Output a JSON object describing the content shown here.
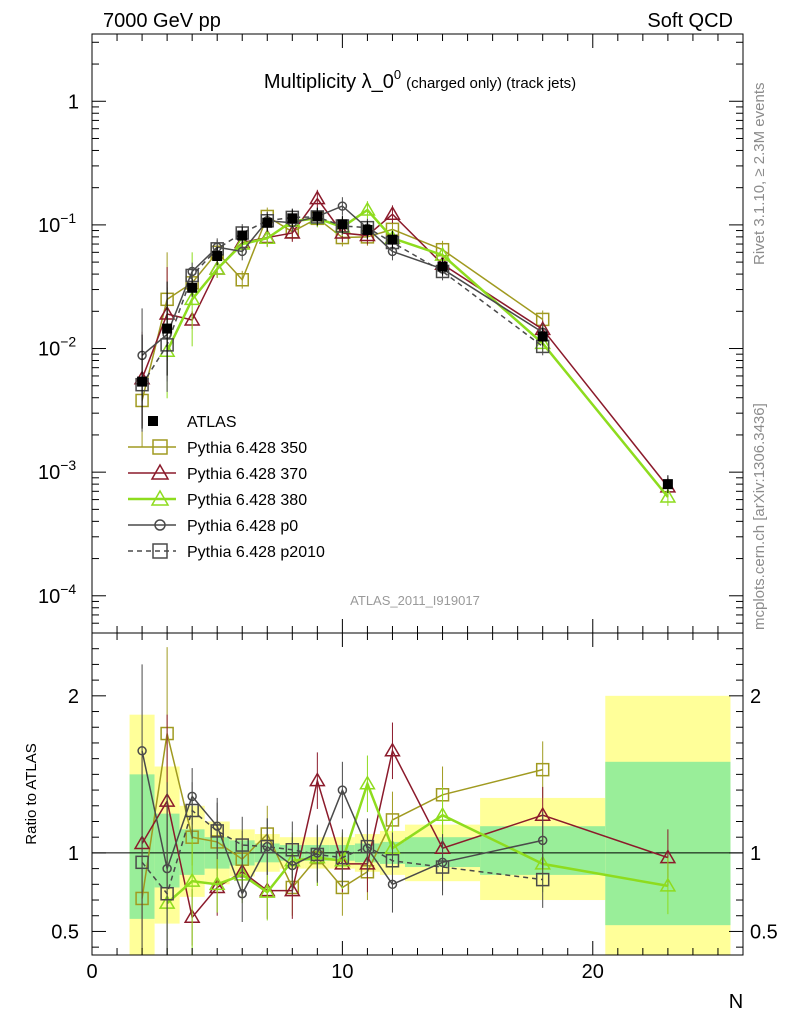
{
  "header": {
    "left": "7000 GeV pp",
    "right": "Soft QCD"
  },
  "side_text": {
    "top": "Rivet 3.1.10, ≥ 2.3M events",
    "bottom": "mcplots.cern.ch [arXiv:1306.3436]"
  },
  "chart_data": [
    {
      "type": "line",
      "title": "Multiplicity λ_0⁰ (charged only) (track jets)",
      "title_main": "Multiplicity λ_0",
      "title_sup": "0",
      "title_rest": "(charged only) (track jets)",
      "watermark": "ATLAS_2011_I919017",
      "xlabel": "N",
      "ylabel": "",
      "xlim": [
        0,
        26
      ],
      "ylim": [
        5e-05,
        3.5
      ],
      "log_y": true,
      "x_ticks": [
        0,
        10,
        20
      ],
      "y_tick_labels": [
        {
          "value": 1,
          "label": "1"
        },
        {
          "value": 0.1,
          "label": "10",
          "exp": "−1"
        },
        {
          "value": 0.01,
          "label": "10",
          "exp": "−2"
        },
        {
          "value": 0.001,
          "label": "10",
          "exp": "−3"
        },
        {
          "value": 0.0001,
          "label": "10",
          "exp": "−4"
        }
      ],
      "legend_position": "left-middle",
      "series": [
        {
          "name": "ATLAS",
          "color": "#000000",
          "marker": "filled-square",
          "style": "points",
          "x": [
            2,
            3,
            4,
            5,
            6,
            7,
            8,
            9,
            10,
            11,
            12,
            14,
            18,
            23
          ],
          "y": [
            0.0054,
            0.0145,
            0.031,
            0.056,
            0.082,
            0.104,
            0.113,
            0.117,
            0.101,
            0.091,
            0.076,
            0.046,
            0.0125,
            0.0008
          ]
        },
        {
          "name": "Pythia 6.428 350",
          "color": "#a09a20",
          "marker": "open-square",
          "style": "solid",
          "x": [
            2,
            3,
            4,
            5,
            6,
            7,
            8,
            9,
            10,
            11,
            12,
            14,
            18
          ],
          "y": [
            0.0038,
            0.025,
            0.034,
            0.06,
            0.036,
            0.117,
            0.088,
            0.113,
            0.079,
            0.08,
            0.092,
            0.063,
            0.0172
          ]
        },
        {
          "name": "Pythia 6.428 370",
          "color": "#8b1a2b",
          "marker": "open-triangle",
          "style": "solid",
          "x": [
            2,
            3,
            4,
            5,
            6,
            7,
            8,
            9,
            10,
            11,
            12,
            14,
            18,
            23
          ],
          "y": [
            0.0057,
            0.019,
            0.017,
            0.044,
            0.072,
            0.079,
            0.086,
            0.163,
            0.086,
            0.082,
            0.122,
            0.048,
            0.0143,
            0.00076
          ]
        },
        {
          "name": "Pythia 6.428 380",
          "color": "#8edc1e",
          "marker": "open-triangle",
          "style": "solid",
          "x": [
            3,
            4,
            5,
            6,
            7,
            8,
            9,
            10,
            11,
            12,
            14,
            18,
            23
          ],
          "y": [
            0.0095,
            0.025,
            0.044,
            0.07,
            0.078,
            0.107,
            0.113,
            0.096,
            0.132,
            0.078,
            0.057,
            0.011,
            0.00063
          ]
        },
        {
          "name": "Pythia 6.428 p0",
          "color": "#4a4a4a",
          "marker": "open-circle",
          "style": "solid",
          "x": [
            2,
            3,
            4,
            5,
            6,
            7,
            8,
            9,
            10,
            11,
            12,
            14,
            18
          ],
          "y": [
            0.0088,
            0.013,
            0.042,
            0.066,
            0.061,
            0.108,
            0.104,
            0.117,
            0.142,
            0.094,
            0.061,
            0.044,
            0.0135
          ]
        },
        {
          "name": "Pythia 6.428 p2010",
          "color": "#4a4a4a",
          "marker": "open-square",
          "style": "dashed",
          "x": [
            2,
            3,
            4,
            5,
            6,
            7,
            8,
            9,
            10,
            11,
            12,
            14,
            18
          ],
          "y": [
            0.0051,
            0.0107,
            0.039,
            0.064,
            0.086,
            0.108,
            0.115,
            0.116,
            0.098,
            0.095,
            0.072,
            0.042,
            0.0104
          ]
        }
      ]
    },
    {
      "type": "line",
      "xlabel": "N",
      "ylabel": "Ratio to ATLAS",
      "xlim": [
        0,
        26
      ],
      "ylim": [
        0.35,
        2.4
      ],
      "x_ticks": [
        0,
        10,
        20
      ],
      "y_ticks": [
        0.5,
        1,
        2
      ],
      "reference_line": 1,
      "bands": [
        {
          "x_low": 1.5,
          "x_high": 2.5,
          "inner": [
            0.58,
            1.5
          ],
          "outer": [
            0.35,
            1.88
          ]
        },
        {
          "x_low": 2.5,
          "x_high": 3.5,
          "inner": [
            0.78,
            1.25
          ],
          "outer": [
            0.55,
            1.55
          ]
        },
        {
          "x_low": 3.5,
          "x_high": 4.5,
          "inner": [
            0.86,
            1.15
          ],
          "outer": [
            0.72,
            1.3
          ]
        },
        {
          "x_low": 4.5,
          "x_high": 5.5,
          "inner": [
            0.9,
            1.1
          ],
          "outer": [
            0.8,
            1.2
          ]
        },
        {
          "x_low": 5.5,
          "x_high": 6.5,
          "inner": [
            0.92,
            1.08
          ],
          "outer": [
            0.85,
            1.15
          ]
        },
        {
          "x_low": 6.5,
          "x_high": 7.5,
          "inner": [
            0.94,
            1.06
          ],
          "outer": [
            0.88,
            1.12
          ]
        },
        {
          "x_low": 7.5,
          "x_high": 8.5,
          "inner": [
            0.95,
            1.05
          ],
          "outer": [
            0.9,
            1.1
          ]
        },
        {
          "x_low": 8.5,
          "x_high": 9.5,
          "inner": [
            0.95,
            1.05
          ],
          "outer": [
            0.9,
            1.1
          ]
        },
        {
          "x_low": 9.5,
          "x_high": 10.5,
          "inner": [
            0.95,
            1.05
          ],
          "outer": [
            0.9,
            1.1
          ]
        },
        {
          "x_low": 10.5,
          "x_high": 11.5,
          "inner": [
            0.94,
            1.06
          ],
          "outer": [
            0.88,
            1.12
          ]
        },
        {
          "x_low": 11.5,
          "x_high": 12.5,
          "inner": [
            0.93,
            1.07
          ],
          "outer": [
            0.86,
            1.14
          ]
        },
        {
          "x_low": 12.5,
          "x_high": 15.5,
          "inner": [
            0.91,
            1.1
          ],
          "outer": [
            0.82,
            1.18
          ]
        },
        {
          "x_low": 15.5,
          "x_high": 20.5,
          "inner": [
            0.86,
            1.17
          ],
          "outer": [
            0.7,
            1.35
          ]
        },
        {
          "x_low": 20.5,
          "x_high": 25.5,
          "inner": [
            0.54,
            1.58
          ],
          "outer": [
            0.35,
            2.0
          ]
        }
      ],
      "series": [
        {
          "name": "Pythia 6.428 350",
          "color": "#a09a20",
          "marker": "open-square",
          "style": "solid",
          "x": [
            2,
            3,
            4,
            5,
            6,
            7,
            8,
            9,
            10,
            11,
            12,
            14,
            18
          ],
          "y": [
            0.71,
            1.76,
            1.1,
            1.07,
            0.96,
            1.12,
            0.78,
            0.97,
            0.78,
            0.88,
            1.21,
            1.37,
            1.53
          ]
        },
        {
          "name": "Pythia 6.428 370",
          "color": "#8b1a2b",
          "marker": "open-triangle",
          "style": "solid",
          "x": [
            2,
            3,
            4,
            5,
            6,
            7,
            8,
            9,
            10,
            11,
            12,
            14,
            18,
            23
          ],
          "y": [
            1.06,
            1.33,
            0.59,
            0.78,
            0.88,
            0.76,
            0.76,
            1.46,
            0.93,
            0.93,
            1.65,
            1.03,
            1.24,
            0.97
          ]
        },
        {
          "name": "Pythia 6.428 380",
          "color": "#8edc1e",
          "marker": "open-triangle",
          "style": "solid",
          "x": [
            3,
            4,
            5,
            6,
            7,
            8,
            9,
            10,
            11,
            12,
            14,
            18,
            23
          ],
          "y": [
            0.68,
            0.82,
            0.8,
            0.86,
            0.75,
            0.95,
            0.97,
            0.95,
            1.44,
            1.03,
            1.24,
            0.93,
            0.79
          ]
        },
        {
          "name": "Pythia 6.428 p0",
          "color": "#4a4a4a",
          "marker": "open-circle",
          "style": "solid",
          "x": [
            2,
            3,
            4,
            5,
            6,
            7,
            8,
            9,
            10,
            11,
            12,
            14,
            18
          ],
          "y": [
            1.65,
            0.9,
            1.36,
            1.17,
            0.74,
            1.04,
            0.92,
            1.0,
            1.4,
            1.03,
            0.8,
            0.94,
            1.08
          ]
        },
        {
          "name": "Pythia 6.428 p2010",
          "color": "#4a4a4a",
          "marker": "open-square",
          "style": "dashed",
          "x": [
            2,
            3,
            4,
            5,
            6,
            7,
            8,
            9,
            10,
            11,
            12,
            14,
            18
          ],
          "y": [
            0.94,
            0.74,
            1.27,
            1.14,
            1.05,
            1.04,
            1.02,
            0.99,
            0.97,
            1.04,
            0.95,
            0.91,
            0.83
          ]
        }
      ]
    }
  ]
}
